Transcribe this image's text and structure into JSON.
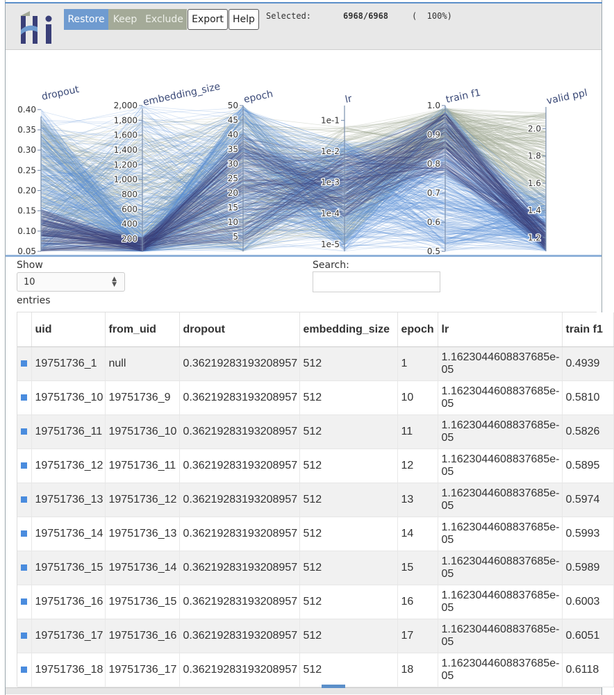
{
  "app": {
    "logo_text": "Hi"
  },
  "toolbar": {
    "restore_label": "Restore",
    "keep_label": "Keep",
    "exclude_label": "Exclude",
    "export_label": "Export",
    "help_label": "Help",
    "selected_label": "Selected:",
    "selected_count": "6968/6968",
    "selected_percent": "(  100%)"
  },
  "colors": {
    "accent": "#6f9bd0",
    "line_blue": "#5a8fd6",
    "line_dark": "#3a3f78",
    "line_gray": "#a7ae9b",
    "row_swatch": "#4a8cde"
  },
  "chart_data": {
    "type": "parallel_coordinates",
    "axes": [
      {
        "name": "dropout",
        "ticks": [
          "0.05",
          "0.10",
          "0.15",
          "0.20",
          "0.25",
          "0.30",
          "0.35",
          "0.40"
        ],
        "range": [
          0.05,
          0.41
        ]
      },
      {
        "name": "embedding_size",
        "ticks": [
          "200",
          "400",
          "600",
          "800",
          "1,000",
          "1,200",
          "1,400",
          "1,600",
          "1,800",
          "2,000"
        ],
        "range": [
          32,
          2000
        ]
      },
      {
        "name": "epoch",
        "ticks": [
          "5",
          "10",
          "15",
          "20",
          "25",
          "30",
          "35",
          "40",
          "45",
          "50"
        ],
        "range": [
          0,
          50
        ]
      },
      {
        "name": "lr",
        "ticks": [
          "1e-5",
          "1e-4",
          "1e-3",
          "1e-2",
          "1e-1"
        ],
        "scale": "log",
        "range": [
          6e-06,
          0.3
        ]
      },
      {
        "name": "train f1",
        "ticks": [
          "0.5",
          "0.6",
          "0.7",
          "0.8",
          "0.9",
          "1.0"
        ],
        "range": [
          0.5,
          1.0
        ]
      },
      {
        "name": "valid ppl",
        "ticks": [
          "1.2",
          "1.4",
          "1.6",
          "1.8",
          "2.0"
        ],
        "range": [
          1.1,
          2.17
        ]
      }
    ]
  },
  "controls": {
    "show_label": "Show",
    "entries_label": "entries",
    "page_length": "10",
    "search_label": "Search:",
    "search_value": ""
  },
  "table": {
    "columns": [
      "",
      "uid",
      "from_uid",
      "dropout",
      "embedding_size",
      "epoch",
      "lr",
      "train f1"
    ],
    "rows": [
      {
        "uid": "19751736_1",
        "from_uid": "null",
        "dropout": "0.36219283193208957",
        "embedding_size": "512",
        "epoch": "1",
        "lr": "1.1623044608837685e-05",
        "train_f1": "0.4939"
      },
      {
        "uid": "19751736_10",
        "from_uid": "19751736_9",
        "dropout": "0.36219283193208957",
        "embedding_size": "512",
        "epoch": "10",
        "lr": "1.1623044608837685e-05",
        "train_f1": "0.5810"
      },
      {
        "uid": "19751736_11",
        "from_uid": "19751736_10",
        "dropout": "0.36219283193208957",
        "embedding_size": "512",
        "epoch": "11",
        "lr": "1.1623044608837685e-05",
        "train_f1": "0.5826"
      },
      {
        "uid": "19751736_12",
        "from_uid": "19751736_11",
        "dropout": "0.36219283193208957",
        "embedding_size": "512",
        "epoch": "12",
        "lr": "1.1623044608837685e-05",
        "train_f1": "0.5895"
      },
      {
        "uid": "19751736_13",
        "from_uid": "19751736_12",
        "dropout": "0.36219283193208957",
        "embedding_size": "512",
        "epoch": "13",
        "lr": "1.1623044608837685e-05",
        "train_f1": "0.5974"
      },
      {
        "uid": "19751736_14",
        "from_uid": "19751736_13",
        "dropout": "0.36219283193208957",
        "embedding_size": "512",
        "epoch": "14",
        "lr": "1.1623044608837685e-05",
        "train_f1": "0.5993"
      },
      {
        "uid": "19751736_15",
        "from_uid": "19751736_14",
        "dropout": "0.36219283193208957",
        "embedding_size": "512",
        "epoch": "15",
        "lr": "1.1623044608837685e-05",
        "train_f1": "0.5989"
      },
      {
        "uid": "19751736_16",
        "from_uid": "19751736_15",
        "dropout": "0.36219283193208957",
        "embedding_size": "512",
        "epoch": "16",
        "lr": "1.1623044608837685e-05",
        "train_f1": "0.6003"
      },
      {
        "uid": "19751736_17",
        "from_uid": "19751736_16",
        "dropout": "0.36219283193208957",
        "embedding_size": "512",
        "epoch": "17",
        "lr": "1.1623044608837685e-05",
        "train_f1": "0.6051"
      },
      {
        "uid": "19751736_18",
        "from_uid": "19751736_17",
        "dropout": "0.36219283193208957",
        "embedding_size": "512",
        "epoch": "18",
        "lr": "1.1623044608837685e-05",
        "train_f1": "0.6118"
      }
    ]
  }
}
